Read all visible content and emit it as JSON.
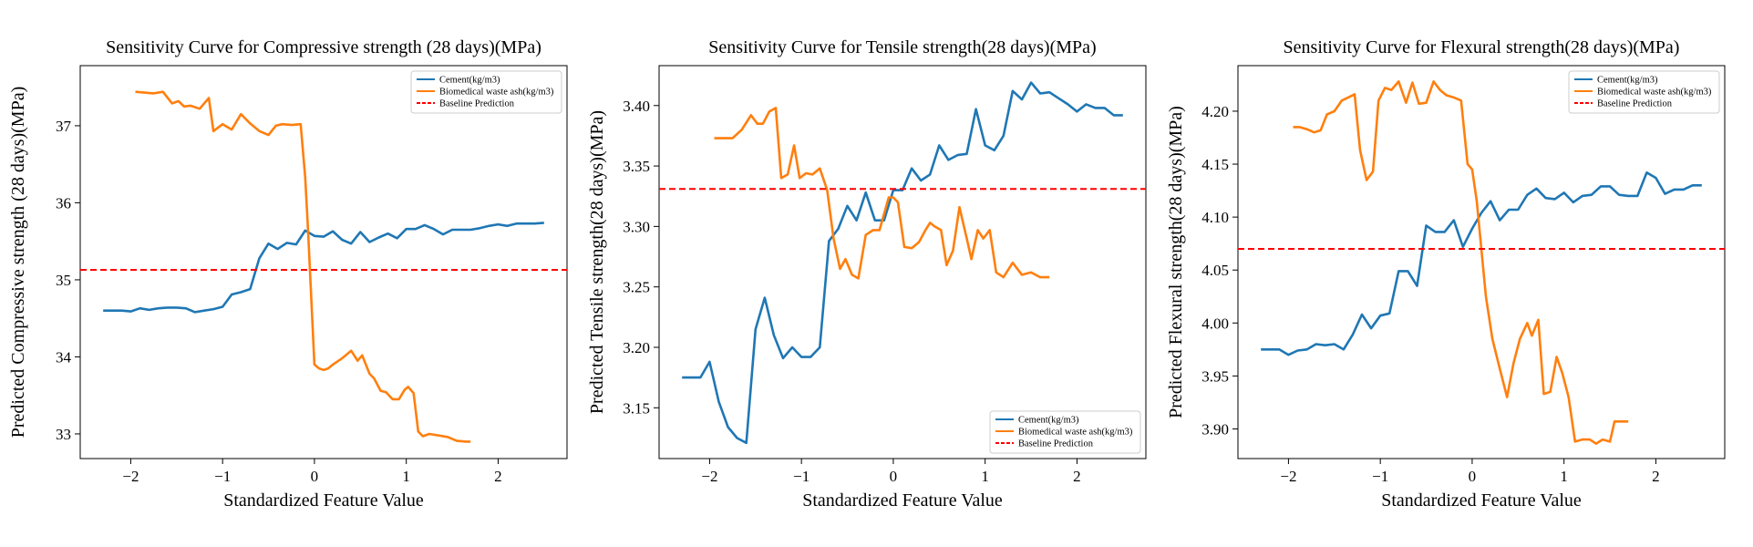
{
  "colors": {
    "cement": "#1f77b4",
    "biomedical": "#ff7f0e",
    "baseline": "#ff0000"
  },
  "chart_data": [
    {
      "type": "line",
      "title": "Sensitivity Curve for Compressive strength (28 days)(MPa)",
      "xlabel": "Standardized Feature Value",
      "ylabel": "Predicted Compressive strength (28 days)(MPa)",
      "xlim": [
        -2.55,
        2.75
      ],
      "ylim": [
        32.68,
        37.78
      ],
      "xticks": [
        -2,
        -1,
        0,
        1,
        2
      ],
      "yticks": [
        33,
        34,
        35,
        36,
        37
      ],
      "legend_position": "top-right",
      "baseline": {
        "name": "Baseline Prediction",
        "value": 35.13
      },
      "series": [
        {
          "name": "Cement(kg/m3)",
          "x": [
            -2.3,
            -2.2,
            -2.1,
            -2.0,
            -1.9,
            -1.8,
            -1.7,
            -1.6,
            -1.5,
            -1.4,
            -1.3,
            -1.2,
            -1.1,
            -1.0,
            -0.9,
            -0.8,
            -0.7,
            -0.6,
            -0.5,
            -0.4,
            -0.3,
            -0.2,
            -0.1,
            0.0,
            0.1,
            0.2,
            0.3,
            0.4,
            0.5,
            0.6,
            0.7,
            0.8,
            0.9,
            1.0,
            1.1,
            1.2,
            1.3,
            1.4,
            1.5,
            1.6,
            1.7,
            1.8,
            1.9,
            2.0,
            2.1,
            2.2,
            2.3,
            2.4,
            2.5
          ],
          "y": [
            34.6,
            34.6,
            34.6,
            34.59,
            34.63,
            34.61,
            34.63,
            34.64,
            34.64,
            34.63,
            34.58,
            34.6,
            34.62,
            34.65,
            34.81,
            34.84,
            34.88,
            35.28,
            35.47,
            35.4,
            35.48,
            35.46,
            35.64,
            35.57,
            35.56,
            35.63,
            35.52,
            35.47,
            35.62,
            35.49,
            35.55,
            35.6,
            35.54,
            35.66,
            35.66,
            35.71,
            35.66,
            35.59,
            35.65,
            35.65,
            35.65,
            35.67,
            35.7,
            35.72,
            35.7,
            35.73,
            35.73,
            35.73,
            35.74
          ]
        },
        {
          "name": "Biomedical waste ash(kg/m3)",
          "x": [
            -1.95,
            -1.85,
            -1.75,
            -1.65,
            -1.55,
            -1.48,
            -1.42,
            -1.35,
            -1.25,
            -1.15,
            -1.1,
            -1.0,
            -0.9,
            -0.8,
            -0.7,
            -0.6,
            -0.5,
            -0.42,
            -0.35,
            -0.25,
            -0.15,
            -0.1,
            -0.07,
            0.0,
            0.05,
            0.1,
            0.15,
            0.2,
            0.3,
            0.4,
            0.47,
            0.52,
            0.6,
            0.65,
            0.72,
            0.78,
            0.85,
            0.92,
            0.98,
            1.02,
            1.08,
            1.13,
            1.18,
            1.25,
            1.35,
            1.45,
            1.55,
            1.65,
            1.7
          ],
          "y": [
            37.44,
            37.43,
            37.42,
            37.44,
            37.29,
            37.32,
            37.25,
            37.26,
            37.22,
            37.36,
            36.93,
            37.02,
            36.95,
            37.15,
            37.03,
            36.93,
            36.88,
            37.0,
            37.02,
            37.01,
            37.02,
            36.33,
            35.65,
            33.9,
            33.85,
            33.83,
            33.85,
            33.9,
            33.98,
            34.08,
            33.95,
            34.02,
            33.78,
            33.72,
            33.56,
            33.54,
            33.45,
            33.45,
            33.57,
            33.61,
            33.53,
            33.03,
            32.97,
            33.0,
            32.98,
            32.96,
            32.91,
            32.9,
            32.9
          ]
        }
      ]
    },
    {
      "type": "line",
      "title": "Sensitivity Curve for Tensile strength(28 days)(MPa)",
      "xlabel": "Standardized Feature Value",
      "ylabel": "Predicted Tensile strength(28 days)(MPa)",
      "xlim": [
        -2.55,
        2.75
      ],
      "ylim": [
        3.108,
        3.433
      ],
      "xticks": [
        -2,
        -1,
        0,
        1,
        2
      ],
      "yticks": [
        3.15,
        3.2,
        3.25,
        3.3,
        3.35,
        3.4
      ],
      "legend_position": "bottom-right",
      "baseline": {
        "name": "Baseline Prediction",
        "value": 3.331
      },
      "series": [
        {
          "name": "Cement(kg/m3)",
          "x": [
            -2.3,
            -2.2,
            -2.1,
            -2.0,
            -1.9,
            -1.8,
            -1.7,
            -1.6,
            -1.5,
            -1.4,
            -1.3,
            -1.2,
            -1.1,
            -1.0,
            -0.9,
            -0.8,
            -0.7,
            -0.6,
            -0.5,
            -0.4,
            -0.3,
            -0.2,
            -0.1,
            0.0,
            0.1,
            0.2,
            0.3,
            0.4,
            0.5,
            0.6,
            0.7,
            0.8,
            0.9,
            1.0,
            1.1,
            1.2,
            1.3,
            1.4,
            1.5,
            1.6,
            1.7,
            1.8,
            1.9,
            2.0,
            2.1,
            2.2,
            2.3,
            2.4,
            2.5
          ],
          "y": [
            3.175,
            3.175,
            3.175,
            3.188,
            3.155,
            3.134,
            3.125,
            3.121,
            3.215,
            3.241,
            3.21,
            3.191,
            3.2,
            3.192,
            3.192,
            3.2,
            3.288,
            3.298,
            3.317,
            3.305,
            3.328,
            3.305,
            3.305,
            3.33,
            3.33,
            3.348,
            3.338,
            3.343,
            3.367,
            3.355,
            3.359,
            3.36,
            3.397,
            3.367,
            3.363,
            3.375,
            3.412,
            3.405,
            3.419,
            3.41,
            3.411,
            3.406,
            3.401,
            3.395,
            3.401,
            3.398,
            3.398,
            3.392,
            3.392
          ]
        },
        {
          "name": "Biomedical waste ash(kg/m3)",
          "x": [
            -1.95,
            -1.85,
            -1.75,
            -1.65,
            -1.55,
            -1.48,
            -1.42,
            -1.35,
            -1.28,
            -1.22,
            -1.15,
            -1.08,
            -1.02,
            -0.95,
            -0.88,
            -0.8,
            -0.72,
            -0.65,
            -0.58,
            -0.52,
            -0.45,
            -0.38,
            -0.3,
            -0.22,
            -0.15,
            -0.05,
            0.0,
            0.05,
            0.12,
            0.2,
            0.28,
            0.35,
            0.4,
            0.45,
            0.52,
            0.58,
            0.65,
            0.72,
            0.8,
            0.85,
            0.92,
            0.98,
            1.05,
            1.12,
            1.2,
            1.3,
            1.4,
            1.5,
            1.6,
            1.7
          ],
          "y": [
            3.373,
            3.373,
            3.373,
            3.38,
            3.392,
            3.385,
            3.385,
            3.395,
            3.398,
            3.34,
            3.343,
            3.367,
            3.34,
            3.344,
            3.343,
            3.348,
            3.33,
            3.29,
            3.265,
            3.273,
            3.26,
            3.257,
            3.293,
            3.297,
            3.297,
            3.324,
            3.324,
            3.32,
            3.283,
            3.282,
            3.287,
            3.297,
            3.303,
            3.3,
            3.297,
            3.268,
            3.28,
            3.316,
            3.29,
            3.273,
            3.297,
            3.29,
            3.297,
            3.262,
            3.258,
            3.27,
            3.26,
            3.262,
            3.258,
            3.258
          ]
        }
      ]
    },
    {
      "type": "line",
      "title": "Sensitivity Curve for Flexural strength(28 days)(MPa)",
      "xlabel": "Standardized Feature Value",
      "ylabel": "Predicted Flexural strength(28 days)(MPa)",
      "xlim": [
        -2.55,
        2.75
      ],
      "ylim": [
        3.872,
        4.243
      ],
      "xticks": [
        -2,
        -1,
        0,
        1,
        2
      ],
      "yticks": [
        3.9,
        3.95,
        4.0,
        4.05,
        4.1,
        4.15,
        4.2
      ],
      "legend_position": "top-right",
      "baseline": {
        "name": "Baseline Prediction",
        "value": 4.07
      },
      "series": [
        {
          "name": "Cement(kg/m3)",
          "x": [
            -2.3,
            -2.2,
            -2.1,
            -2.0,
            -1.9,
            -1.8,
            -1.7,
            -1.6,
            -1.5,
            -1.4,
            -1.3,
            -1.2,
            -1.1,
            -1.0,
            -0.9,
            -0.8,
            -0.7,
            -0.6,
            -0.5,
            -0.4,
            -0.3,
            -0.2,
            -0.1,
            0.0,
            0.1,
            0.2,
            0.3,
            0.4,
            0.5,
            0.6,
            0.7,
            0.8,
            0.9,
            1.0,
            1.1,
            1.2,
            1.3,
            1.4,
            1.5,
            1.6,
            1.7,
            1.8,
            1.9,
            2.0,
            2.1,
            2.2,
            2.3,
            2.4,
            2.5
          ],
          "y": [
            3.975,
            3.975,
            3.975,
            3.97,
            3.974,
            3.975,
            3.98,
            3.979,
            3.98,
            3.975,
            3.989,
            4.008,
            3.995,
            4.007,
            4.009,
            4.049,
            4.049,
            4.035,
            4.092,
            4.086,
            4.086,
            4.097,
            4.072,
            4.089,
            4.104,
            4.115,
            4.097,
            4.107,
            4.107,
            4.121,
            4.127,
            4.118,
            4.117,
            4.123,
            4.114,
            4.12,
            4.121,
            4.129,
            4.129,
            4.121,
            4.12,
            4.12,
            4.142,
            4.137,
            4.122,
            4.126,
            4.126,
            4.13,
            4.13
          ]
        },
        {
          "name": "Biomedical waste ash(kg/m3)",
          "x": [
            -1.95,
            -1.88,
            -1.8,
            -1.72,
            -1.65,
            -1.58,
            -1.5,
            -1.42,
            -1.35,
            -1.28,
            -1.22,
            -1.15,
            -1.08,
            -1.02,
            -0.95,
            -0.88,
            -0.8,
            -0.72,
            -0.65,
            -0.58,
            -0.5,
            -0.42,
            -0.35,
            -0.28,
            -0.2,
            -0.12,
            -0.05,
            0.0,
            0.05,
            0.1,
            0.15,
            0.22,
            0.3,
            0.38,
            0.45,
            0.52,
            0.6,
            0.65,
            0.72,
            0.78,
            0.85,
            0.92,
            0.98,
            1.05,
            1.12,
            1.2,
            1.28,
            1.35,
            1.42,
            1.5,
            1.55,
            1.62,
            1.7
          ],
          "y": [
            4.185,
            4.185,
            4.183,
            4.18,
            4.182,
            4.197,
            4.2,
            4.21,
            4.213,
            4.216,
            4.163,
            4.135,
            4.143,
            4.21,
            4.222,
            4.22,
            4.228,
            4.208,
            4.227,
            4.207,
            4.208,
            4.228,
            4.22,
            4.215,
            4.213,
            4.21,
            4.15,
            4.145,
            4.115,
            4.07,
            4.025,
            3.985,
            3.957,
            3.93,
            3.962,
            3.985,
            4.0,
            3.988,
            4.003,
            3.933,
            3.935,
            3.968,
            3.953,
            3.93,
            3.888,
            3.89,
            3.89,
            3.886,
            3.89,
            3.888,
            3.907,
            3.907,
            3.907
          ]
        }
      ]
    }
  ]
}
